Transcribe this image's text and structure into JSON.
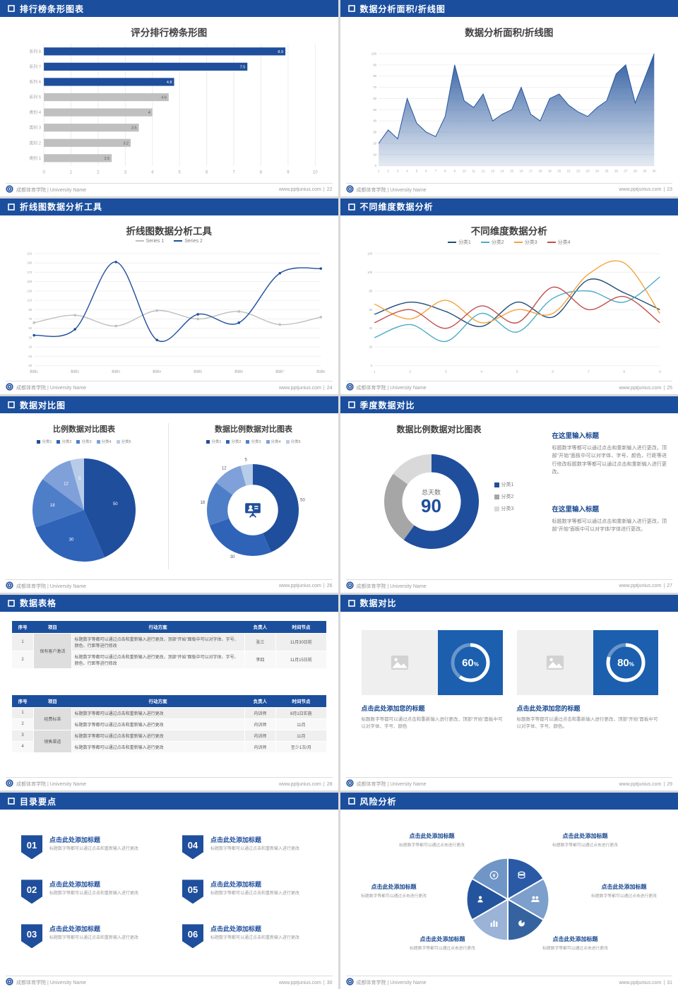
{
  "theme": {
    "header_bg": "#1B4F9E",
    "accent": "#1F4E9C",
    "gray_bar": "#C0C0C0",
    "text_gray": "#7F7F7F"
  },
  "footer": {
    "university": "成都体育学院 | University Name",
    "site": "www.pptjunius.com",
    "sep": "|"
  },
  "slides": [
    {
      "header": "排行榜条形图表",
      "page": "22",
      "chart_data": {
        "type": "barh",
        "title": "评分排行榜条形图",
        "categories": [
          "系列 8",
          "系列 7",
          "系列 6",
          "系列 5",
          "类别 4",
          "类别 3",
          "类别 2",
          "类别 1"
        ],
        "values": [
          8.9,
          7.5,
          4.8,
          4.6,
          4,
          3.5,
          3.2,
          2.5
        ],
        "bar_colors": [
          "#1F4E9C",
          "#1F4E9C",
          "#1F4E9C",
          "#C0C0C0",
          "#C0C0C0",
          "#C0C0C0",
          "#C0C0C0",
          "#C0C0C0"
        ],
        "xlim": [
          0,
          10
        ],
        "xticks": [
          0,
          1,
          2,
          3,
          4,
          5,
          6,
          7,
          8,
          9,
          10
        ]
      }
    },
    {
      "header": "数据分析面积/折线图",
      "page": "23",
      "chart_data": {
        "type": "area",
        "title": "数据分析面积/折线图",
        "x": [
          1,
          2,
          3,
          4,
          5,
          6,
          7,
          8,
          9,
          10,
          11,
          12,
          13,
          14,
          15,
          16,
          17,
          18,
          19,
          20,
          21,
          22,
          23,
          24,
          25,
          26,
          27,
          28,
          29,
          30
        ],
        "values": [
          20,
          32,
          24,
          60,
          38,
          30,
          26,
          44,
          90,
          58,
          52,
          64,
          40,
          46,
          50,
          70,
          46,
          40,
          60,
          64,
          54,
          48,
          44,
          52,
          58,
          82,
          90,
          56,
          78,
          100
        ],
        "ylim": [
          0,
          100
        ],
        "yticks": [
          0,
          10,
          20,
          30,
          40,
          50,
          60,
          70,
          80,
          90,
          100
        ],
        "color": "#24549C"
      }
    },
    {
      "header": "折线图数据分析工具",
      "page": "24",
      "chart_data": {
        "type": "line",
        "title": "折线图数据分析工具",
        "categories": [
          "数据1",
          "数据2",
          "数据3",
          "数据4",
          "数据5",
          "数据6",
          "数据7",
          "数据8"
        ],
        "series": [
          {
            "name": "Series 1",
            "color": "#BFBFBF",
            "values": [
              62,
              78,
              55,
              88,
              70,
              86,
              58,
              74
            ]
          },
          {
            "name": "Series 2",
            "color": "#1F4E9C",
            "values": [
              35,
              48,
              192,
              25,
              80,
              62,
              168,
              178
            ]
          }
        ],
        "ylim": [
          -30,
          210
        ],
        "yticks": [
          -30,
          -10,
          10,
          30,
          50,
          70,
          90,
          110,
          130,
          150,
          170,
          190,
          210
        ],
        "smooth": true,
        "markers": true
      }
    },
    {
      "header": "不同维度数据分析",
      "page": "25",
      "chart_data": {
        "type": "line",
        "title": "不同维度数据分析",
        "categories": [
          "1",
          "2",
          "3",
          "4",
          "5",
          "6",
          "7",
          "8",
          "9"
        ],
        "series": [
          {
            "name": "分类1",
            "color": "#1F4E79",
            "values": [
              55,
              68,
              58,
              42,
              68,
              52,
              92,
              78,
              60
            ]
          },
          {
            "name": "分类2",
            "color": "#4BACC6",
            "values": [
              30,
              44,
              26,
              56,
              36,
              72,
              80,
              68,
              95
            ]
          },
          {
            "name": "分类3",
            "color": "#F5A33C",
            "values": [
              66,
              50,
              70,
              46,
              60,
              56,
              98,
              110,
              56
            ]
          },
          {
            "name": "分类4",
            "color": "#C0504D",
            "values": [
              46,
              60,
              40,
              64,
              46,
              84,
              60,
              74,
              46
            ]
          }
        ],
        "ylim": [
          0,
          120
        ],
        "yticks": [
          0,
          20,
          40,
          60,
          80,
          100,
          120
        ],
        "smooth": true,
        "markers": false
      }
    },
    {
      "header": "数据对比图",
      "page": "26",
      "left": {
        "title": "比例数据对比图表"
      },
      "right": {
        "title": "数据比例数据对比图表"
      },
      "legend": [
        "分类1",
        "分类2",
        "分类3",
        "分类4",
        "分类5"
      ],
      "chart_data": [
        {
          "type": "pie",
          "values": [
            50,
            30,
            18,
            12,
            5
          ],
          "labels": [
            "50",
            "30",
            "18",
            "12",
            "5"
          ],
          "colors": [
            "#1F4E9C",
            "#2E63B8",
            "#4E7EC8",
            "#7FA0D8",
            "#B7CCE9"
          ],
          "label_pos": "inside"
        },
        {
          "type": "donut",
          "values": [
            50,
            30,
            18,
            12,
            5
          ],
          "labels": [
            "50",
            "30",
            "18",
            "12",
            "5"
          ],
          "colors": [
            "#1F4E9C",
            "#2E63B8",
            "#4E7EC8",
            "#7FA0D8",
            "#B7CCE9"
          ],
          "inner_ratio": 0.55,
          "label_pos": "outside"
        }
      ]
    },
    {
      "header": "季度数据对比",
      "page": "27",
      "title": "数据比例数据对比图表",
      "center_label": "总天数",
      "center_value": "90",
      "legend": [
        "分类1",
        "分类2",
        "分类3"
      ],
      "chart_data": {
        "type": "donut",
        "values": [
          60,
          25,
          15
        ],
        "colors": [
          "#1F4E9C",
          "#A6A6A6",
          "#D9D9D9"
        ],
        "inner_ratio": 0.62,
        "label_pos": "none"
      },
      "blocks": [
        {
          "heading": "在这里输入标题",
          "body": "标题数字等都可以通过点击和重新输入进行更改，顶部“开始”面板中可以对字体、字号、颜色、行距等进行修改标题数字等都可以通过点击和重新输入进行更改。"
        },
        {
          "heading": "在这里输入标题",
          "body": "标题数字等都可以通过点击和重新输入进行更改，顶部“开始”面板中可以对字体/字体进行更改。"
        }
      ]
    },
    {
      "header": "数据表格",
      "page": "28",
      "tables": [
        {
          "headers": [
            "序号",
            "项目",
            "行动方案",
            "负责人",
            "时间节点"
          ],
          "rows": [
            {
              "no": "1",
              "project": "保有客户激活",
              "plan": "标题数字等都可以通过点击和重新输入进行更改，顶部“开始”面板中可以对字体、字号、颜色、行距等进行修改",
              "owner": "张三",
              "time": "11月30日前"
            },
            {
              "no": "2",
              "plan": "标题数字等都可以通过点击和重新输入进行更改，顶部“开始”面板中可以对字体、字号、颜色、行距等进行修改",
              "owner": "李四",
              "time": "11月15日前"
            }
          ]
        },
        {
          "headers": [
            "序号",
            "项目",
            "行动方案",
            "负责人",
            "时间节点"
          ],
          "rows": [
            {
              "no": "1",
              "project": "经费标准",
              "plan": "标题数字等都可以通过点击和重新输入进行更改",
              "owner": "内训师",
              "time": "8月1日实施"
            },
            {
              "no": "2",
              "plan": "标题数字等都可以通过点击和重新输入进行更改",
              "owner": "内训师",
              "time": "11月"
            },
            {
              "no": "3",
              "project": "销售渠道",
              "plan": "标题数字等都可以通过点击和重新输入进行更改",
              "owner": "内训师",
              "time": "11月"
            },
            {
              "no": "4",
              "plan": "标题数字等都可以通过点击和重新输入进行更改",
              "owner": "内训师",
              "time": "至少1次/月"
            }
          ]
        }
      ]
    },
    {
      "header": "数据对比",
      "page": "29",
      "cards": [
        {
          "percent": 60,
          "title": "点击此处添加您的标题",
          "body": "标题数字等都可以通过点击和重新输入进行更改，顶部“开始”面板中可以对字体、字号、颜色"
        },
        {
          "percent": 80,
          "title": "点击此处添加您的标题",
          "body": "标题数字等都可以通过点击和重新输入进行更改，顶部“开始”面板中可以对字体、字号、颜色。"
        }
      ]
    },
    {
      "header": "目录要点",
      "page": "30",
      "items": [
        {
          "num": "01",
          "title": "点击此处添加标题",
          "desc": "标题数字等都可以通过点击和重新输入进行更改"
        },
        {
          "num": "02",
          "title": "点击此处添加标题",
          "desc": "标题数字等都可以通过点击和重新输入进行更改"
        },
        {
          "num": "03",
          "title": "点击此处添加标题",
          "desc": "标题数字等都可以通过点击和重新输入进行更改"
        },
        {
          "num": "04",
          "title": "点击此处添加标题",
          "desc": "标题数字等都可以通过点击和重新输入进行更改"
        },
        {
          "num": "05",
          "title": "点击此处添加标题",
          "desc": "标题数字等都可以通过点击和重新输入进行更改"
        },
        {
          "num": "06",
          "title": "点击此处添加标题",
          "desc": "标题数字等都可以通过点击和重新输入进行更改"
        }
      ]
    },
    {
      "header": "风险分析",
      "page": "31",
      "items": [
        {
          "title": "点击此处添加标题",
          "desc": "标题数字等都可以通过点击进行更改"
        },
        {
          "title": "点击此处添加标题",
          "desc": "标题数字等都可以通过点击进行更改"
        },
        {
          "title": "点击此处添加标题",
          "desc": "标题数字等都可以通过点击进行更改"
        },
        {
          "title": "点击此处添加标题",
          "desc": "标题数字等都可以通过点击进行更改"
        },
        {
          "title": "点击此处添加标题",
          "desc": "标题数字等都可以通过点击进行更改"
        },
        {
          "title": "点击此处添加标题",
          "desc": "标题数字等都可以通过点击进行更改"
        }
      ]
    }
  ]
}
